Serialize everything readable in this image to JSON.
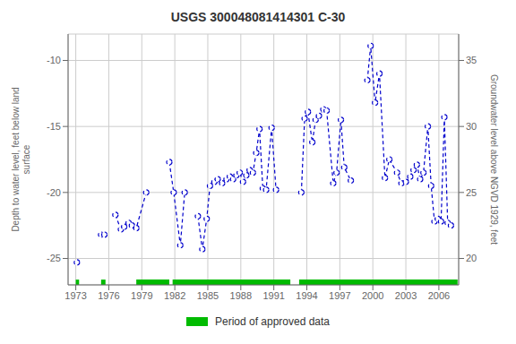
{
  "chart_data": {
    "type": "line",
    "title": "USGS 300048081414301 C-30",
    "ylabel": "Depth to water level, feet below land\nsurface",
    "y2label": "Groundwater level above NGVD 1929, feet",
    "xlim": [
      1972.3,
      2007.8
    ],
    "xticks": [
      1973,
      1976,
      1979,
      1982,
      1985,
      1988,
      1991,
      1994,
      1997,
      2000,
      2003,
      2006
    ],
    "ylim": [
      -27,
      -8
    ],
    "yticks": [
      -25,
      -20,
      -15,
      -10
    ],
    "y2lim": [
      18,
      37
    ],
    "y2ticks": [
      20,
      25,
      30,
      35
    ],
    "grid": true,
    "legend": "bottom",
    "series": [
      {
        "x": [
          1973.1
        ],
        "values": [
          -25.3
        ],
        "color": "#0000CC",
        "marker": "o",
        "line_style": "dashed"
      },
      {
        "x": [
          1975.3,
          1975.6
        ],
        "values": [
          -23.2,
          -23.2
        ],
        "color": "#0000CC",
        "marker": "o",
        "line_style": "dashed"
      },
      {
        "x": [
          1976.6,
          1977.1,
          1977.4,
          1977.8,
          1978.1,
          1978.5,
          1979.4
        ],
        "values": [
          -21.7,
          -22.8,
          -22.6,
          -22.3,
          -22.5,
          -22.7,
          -20.0
        ],
        "color": "#0000CC",
        "marker": "o",
        "line_style": "dashed"
      },
      {
        "x": [
          1981.5,
          1981.9,
          1982.5,
          1982.9
        ],
        "values": [
          -17.7,
          -20.0,
          -24.0,
          -20.0
        ],
        "color": "#0000CC",
        "marker": "o",
        "line_style": "dashed"
      },
      {
        "x": [
          1984.1,
          1984.5,
          1984.9,
          1985.2,
          1985.6,
          1985.9,
          1986.3,
          1986.7,
          1987.0,
          1987.3,
          1987.6,
          1987.9,
          1988.2,
          1988.5,
          1988.8,
          1989.1,
          1989.4,
          1989.7,
          1990.0,
          1990.3,
          1990.8,
          1991.2
        ],
        "values": [
          -21.8,
          -24.3,
          -22.0,
          -19.5,
          -19.2,
          -19.0,
          -19.3,
          -19.0,
          -18.8,
          -19.0,
          -18.7,
          -18.5,
          -19.2,
          -18.7,
          -18.3,
          -18.5,
          -17.0,
          -15.2,
          -19.7,
          -19.8,
          -15.1,
          -19.8
        ],
        "color": "#0000CC",
        "marker": "o",
        "line_style": "dashed"
      },
      {
        "x": [
          1993.5,
          1993.8,
          1994.1,
          1994.5,
          1994.8,
          1995.1,
          1995.5,
          1995.8,
          1996.4,
          1996.7,
          1997.1,
          1997.4,
          1998.0
        ],
        "values": [
          -20.0,
          -14.4,
          -13.9,
          -16.2,
          -14.5,
          -14.2,
          -13.7,
          -13.8,
          -19.3,
          -18.5,
          -14.5,
          -18.1,
          -19.1
        ],
        "color": "#0000CC",
        "marker": "o",
        "line_style": "dashed"
      },
      {
        "x": [
          1999.5,
          1999.8,
          2000.2,
          2000.6,
          2001.1,
          2001.5,
          2002.2,
          2002.6,
          2003.0,
          2003.4,
          2003.7,
          2004.0,
          2004.3,
          2004.6,
          2005.0,
          2005.3,
          2005.6,
          2005.9,
          2006.2,
          2006.5,
          2006.8,
          2007.1
        ],
        "values": [
          -11.5,
          -8.9,
          -13.2,
          -11.0,
          -18.9,
          -17.5,
          -18.5,
          -19.3,
          -19.2,
          -18.8,
          -18.3,
          -17.9,
          -19.0,
          -18.5,
          -15.0,
          -19.5,
          -22.2,
          -22.0,
          -22.2,
          -14.3,
          -22.3,
          -22.5
        ],
        "color": "#0000CC",
        "marker": "o",
        "line_style": "dashed"
      }
    ],
    "approved_periods": {
      "name": "Period of approved data",
      "color": "#00bb00",
      "ranges": [
        [
          1973.0,
          1973.3
        ],
        [
          1975.3,
          1975.7
        ],
        [
          1978.5,
          1981.5
        ],
        [
          1981.8,
          1992.5
        ],
        [
          1993.3,
          2007.7
        ]
      ]
    }
  }
}
